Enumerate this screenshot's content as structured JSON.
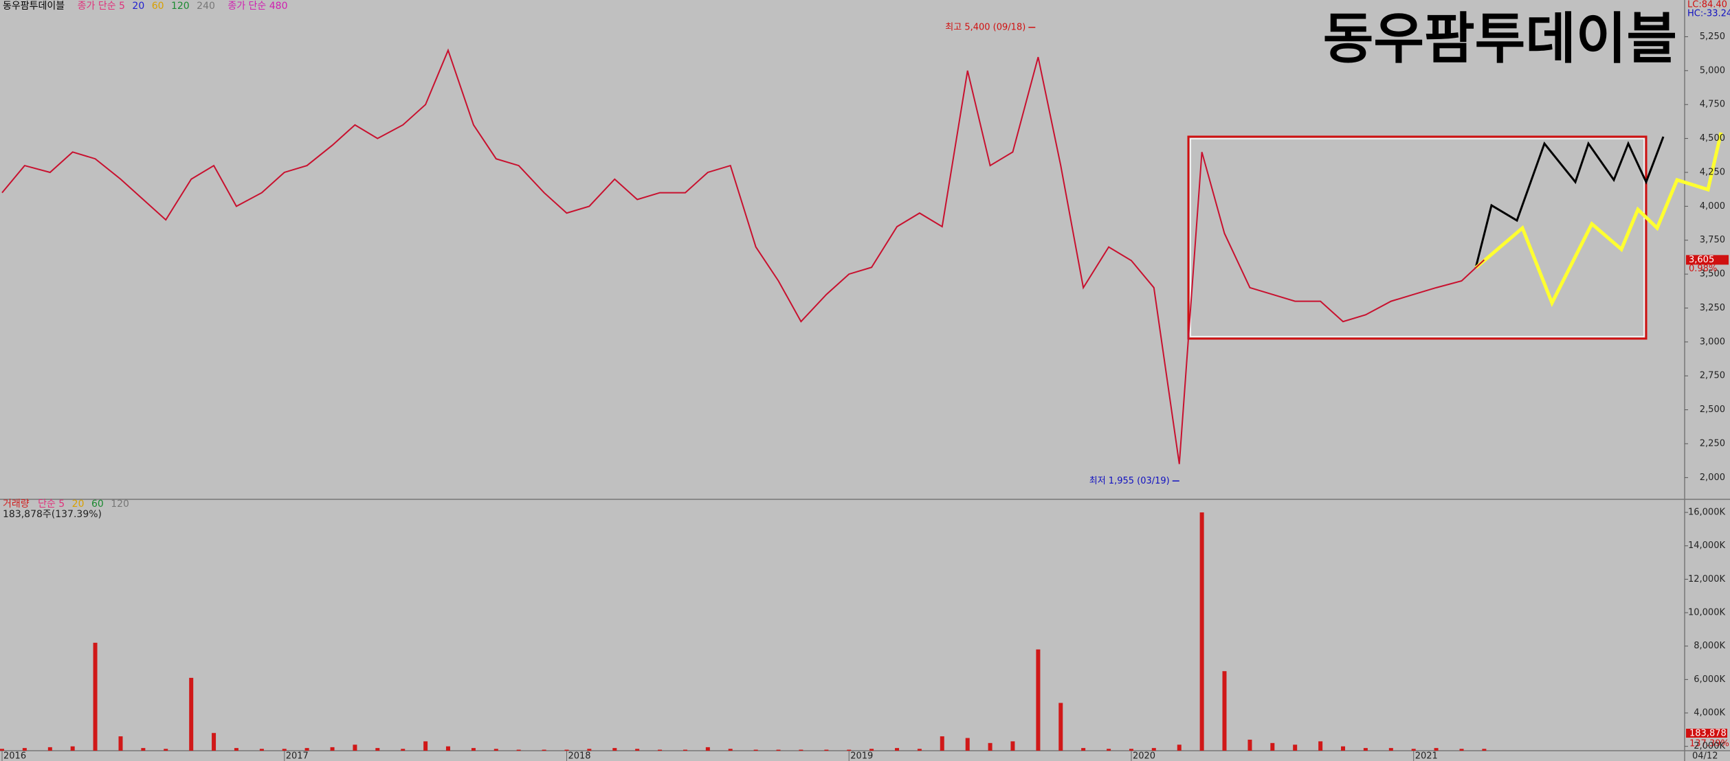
{
  "header": {
    "name": "동우팜투데이블",
    "ma_label": "종가 단순 5",
    "ma": [
      "20",
      "60",
      "120",
      "240"
    ],
    "ma_long": "종가 단순 480",
    "lc": "LC:84.40",
    "hc": "HC:-33.24",
    "date": "04/12",
    "change": "0.98%",
    "volume_title": "거래량",
    "volume_ma_label": "단순 5",
    "volume_ma": [
      "20",
      "60",
      "120"
    ],
    "volume_summary": "183,878주(137.39%)",
    "last_volume": "183,878",
    "last_volume_pct": "137.39%"
  },
  "chart_data": [
    {
      "type": "line",
      "title": "동우팜투데이블",
      "x": [
        2016.0,
        2016.08,
        2016.17,
        2016.25,
        2016.33,
        2016.42,
        2016.5,
        2016.58,
        2016.67,
        2016.75,
        2016.83,
        2016.92,
        2017.0,
        2017.08,
        2017.17,
        2017.25,
        2017.33,
        2017.42,
        2017.5,
        2017.58,
        2017.67,
        2017.75,
        2017.83,
        2017.92,
        2018.0,
        2018.08,
        2018.17,
        2018.25,
        2018.33,
        2018.42,
        2018.5,
        2018.58,
        2018.67,
        2018.75,
        2018.83,
        2018.92,
        2019.0,
        2019.08,
        2019.17,
        2019.25,
        2019.33,
        2019.42,
        2019.5,
        2019.58,
        2019.67,
        2019.75,
        2019.83,
        2019.92,
        2020.0,
        2020.08,
        2020.17,
        2020.25,
        2020.33,
        2020.42,
        2020.5,
        2020.58,
        2020.67,
        2020.75,
        2020.83,
        2020.92,
        2021.0,
        2021.08,
        2021.17,
        2021.25
      ],
      "series": [
        {
          "color": "#c8102e",
          "values": [
            4100,
            4300,
            4250,
            4400,
            4350,
            4200,
            4050,
            3900,
            4200,
            4300,
            4000,
            4100,
            4250,
            4300,
            4450,
            4600,
            4500,
            4600,
            4750,
            5150,
            4600,
            4350,
            4300,
            4100,
            3950,
            4000,
            4200,
            4050,
            4100,
            4100,
            4250,
            4300,
            3700,
            3450,
            3150,
            3350,
            3500,
            3550,
            3850,
            3950,
            3850,
            5000,
            4300,
            4400,
            5100,
            4300,
            3400,
            3700,
            3600,
            3400,
            2100,
            4400,
            3800,
            3400,
            3350,
            3300,
            3300,
            3150,
            3200,
            3300,
            3350,
            3400,
            3450,
            3605
          ]
        }
      ],
      "xlim": [
        2016,
        2021.96
      ],
      "xticks": [
        2016,
        2017,
        2018,
        2019,
        2020,
        2021
      ],
      "ylim": [
        1850,
        5470
      ],
      "yticks": [
        {
          "value": 2000,
          "label": "2,000"
        },
        {
          "value": 2250,
          "label": "2,250"
        },
        {
          "value": 2500,
          "label": "2,500"
        },
        {
          "value": 2750,
          "label": "2,750"
        },
        {
          "value": 3000,
          "label": "3,000"
        },
        {
          "value": 3250,
          "label": "3,250"
        },
        {
          "value": 3500,
          "label": "3,500"
        },
        {
          "value": 3750,
          "label": "3,750"
        },
        {
          "value": 4000,
          "label": "4,000"
        },
        {
          "value": 4250,
          "label": "4,250"
        },
        {
          "value": 4500,
          "label": "4,500"
        },
        {
          "value": 4750,
          "label": "4,750"
        },
        {
          "value": 5000,
          "label": "5,000"
        },
        {
          "value": 5250,
          "label": "5,250"
        }
      ],
      "last_price": {
        "value": 3605,
        "label": "3,605"
      },
      "annotations": [
        {
          "text": "최고 5,400 (09/18)",
          "x": 2019.66,
          "y": 5400,
          "color": "#d01010"
        },
        {
          "text": "최저 1,955 (03/19)",
          "x": 2020.17,
          "y": 1955,
          "color": "#1010c0"
        }
      ]
    },
    {
      "type": "bar",
      "color": "#d01818",
      "values": [
        1850,
        1900,
        1950,
        2000,
        8200,
        2600,
        1900,
        1850,
        6100,
        2800,
        1900,
        1850,
        1850,
        1900,
        1950,
        2100,
        1900,
        1850,
        2300,
        2000,
        1900,
        1850,
        1800,
        1800,
        1800,
        1850,
        1900,
        1850,
        1800,
        1800,
        1950,
        1850,
        1800,
        1800,
        1800,
        1800,
        1800,
        1850,
        1900,
        1850,
        2600,
        2500,
        2200,
        2300,
        7800,
        4600,
        1900,
        1850,
        1850,
        1900,
        2100,
        16000,
        6500,
        2400,
        2200,
        2100,
        2300,
        2000,
        1900,
        1900,
        1850,
        1900,
        1850,
        1850
      ],
      "ylim": [
        1740,
        16660
      ],
      "yticks": [
        {
          "value": 2000,
          "label": "2,000K"
        },
        {
          "value": 4000,
          "label": "4,000K"
        },
        {
          "value": 6000,
          "label": "6,000K"
        },
        {
          "value": 8000,
          "label": "8,000K"
        },
        {
          "value": 10000,
          "label": "10,000K"
        },
        {
          "value": 12000,
          "label": "12,000K"
        },
        {
          "value": 14000,
          "label": "14,000K"
        },
        {
          "value": 16000,
          "label": "16,000K"
        }
      ]
    }
  ]
}
